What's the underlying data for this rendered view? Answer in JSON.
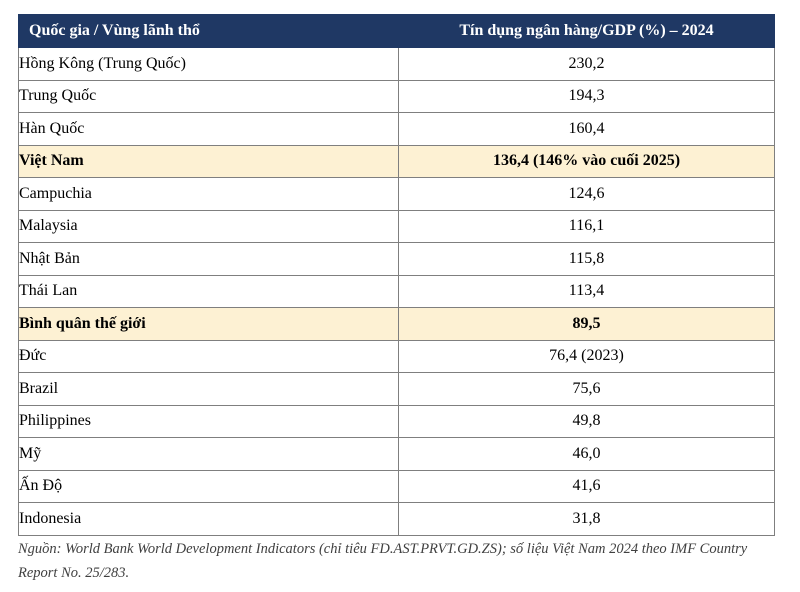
{
  "table": {
    "headers": {
      "country": "Quốc gia / Vùng lãnh thổ",
      "value": "Tín dụng ngân hàng/GDP (%) – 2024"
    },
    "rows": [
      {
        "country": "Hồng Kông (Trung Quốc)",
        "value": "230,2",
        "highlight": false
      },
      {
        "country": "Trung Quốc",
        "value": "194,3",
        "highlight": false
      },
      {
        "country": "Hàn Quốc",
        "value": "160,4",
        "highlight": false
      },
      {
        "country": "Việt Nam",
        "value": "136,4  (146% vào cuối 2025)",
        "highlight": true
      },
      {
        "country": "Campuchia",
        "value": "124,6",
        "highlight": false
      },
      {
        "country": "Malaysia",
        "value": "116,1",
        "highlight": false
      },
      {
        "country": "Nhật Bản",
        "value": "115,8",
        "highlight": false
      },
      {
        "country": "Thái Lan",
        "value": "113,4",
        "highlight": false
      },
      {
        "country": "Bình quân thế giới",
        "value": "89,5",
        "highlight": true
      },
      {
        "country": "Đức",
        "value": "76,4  (2023)",
        "highlight": false
      },
      {
        "country": "Brazil",
        "value": "75,6",
        "highlight": false
      },
      {
        "country": "Philippines",
        "value": "49,8",
        "highlight": false
      },
      {
        "country": "Mỹ",
        "value": "46,0",
        "highlight": false
      },
      {
        "country": "Ấn Độ",
        "value": "41,6",
        "highlight": false
      },
      {
        "country": "Indonesia",
        "value": "31,8",
        "highlight": false
      }
    ]
  },
  "source_note": "Nguồn: World Bank World Development Indicators (chỉ tiêu FD.AST.PRVT.GD.ZS); số liệu Việt Nam 2024 theo IMF Country Report No. 25/283.",
  "colors": {
    "header_bg": "#1f3864",
    "highlight_bg": "#fdf1d3"
  }
}
